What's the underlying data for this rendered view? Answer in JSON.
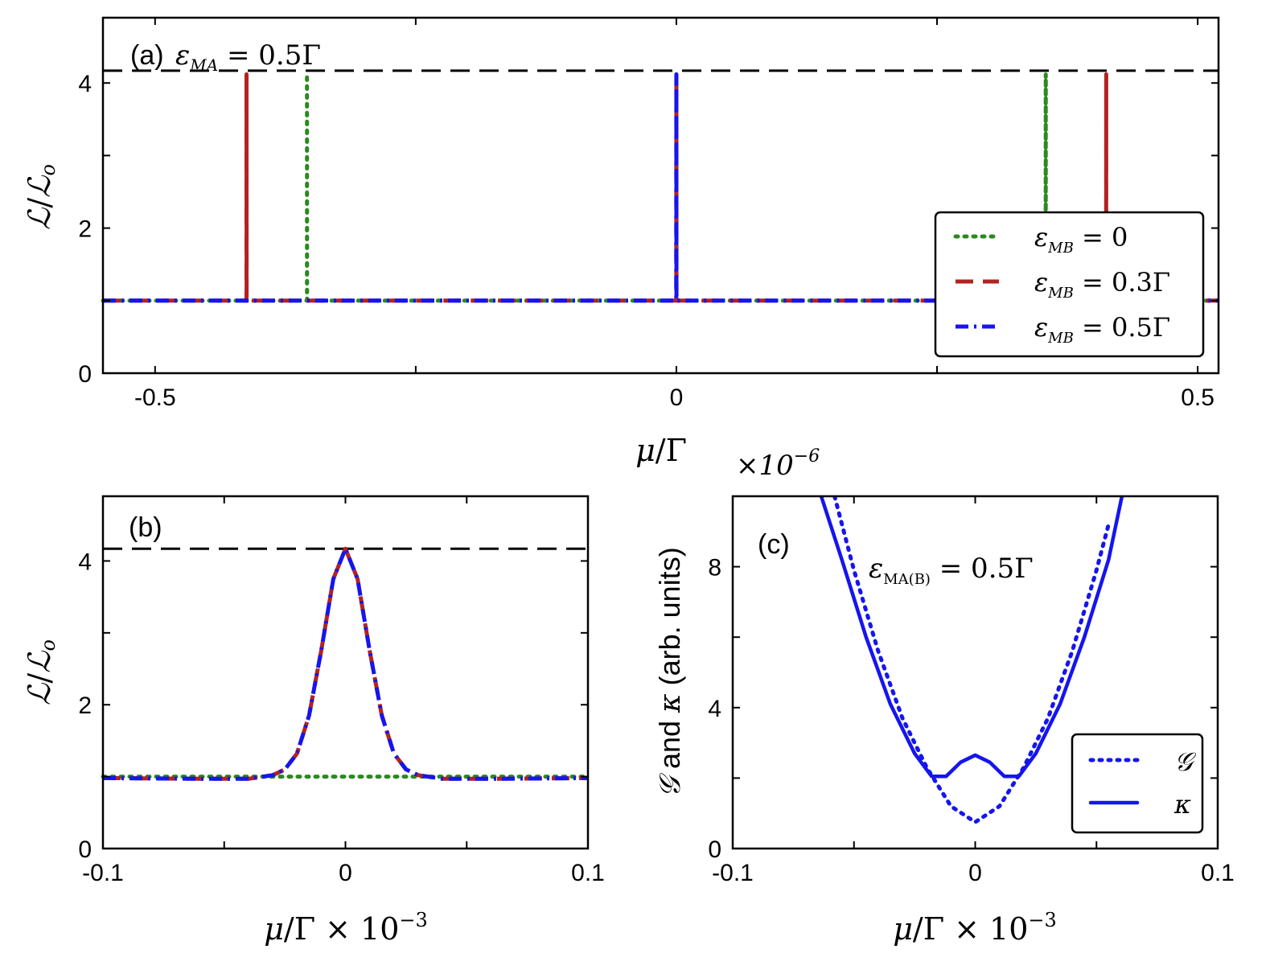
{
  "colors": {
    "green": "#2a8a1f",
    "red": "#b22222",
    "blue": "#1515ee",
    "reference": "#000000"
  },
  "chart_data": [
    {
      "id": "a",
      "type": "line",
      "panel_label": "(a)",
      "annotation": "ε_MA = 0.5Γ",
      "xlabel": "μ/Γ",
      "ylabel": "ℒ/ℒo",
      "xlim": [
        -0.55,
        0.52
      ],
      "ylim": [
        0,
        4.9
      ],
      "xticks": [
        -0.5,
        -0.25,
        0,
        0.25,
        0.5
      ],
      "xtick_labels": [
        "-0.5",
        "",
        "0",
        "",
        "0.5"
      ],
      "yticks": [
        0,
        1,
        2,
        3,
        4
      ],
      "ytick_labels": [
        "0",
        "",
        "2",
        "",
        "4"
      ],
      "reference_line": 4.17,
      "legend": {
        "position": "lower-right",
        "entries": [
          {
            "label": "ε_MB = 0",
            "style": "dotted",
            "color": "green"
          },
          {
            "label": "ε_MB = 0.3Γ",
            "style": "dashed",
            "color": "red"
          },
          {
            "label": "ε_MB = 0.5Γ",
            "style": "dashdot",
            "color": "blue"
          }
        ]
      },
      "series": [
        {
          "name": "ε_MB = 0",
          "style": "dotted",
          "color": "green",
          "x": [
            -0.55,
            -0.3543,
            -0.3543,
            -0.3542,
            0.3542,
            0.3543,
            0.3543,
            0.52
          ],
          "y": [
            1.0,
            1.0,
            4.12,
            1.0,
            1.0,
            4.12,
            1.0,
            1.0
          ]
        },
        {
          "name": "ε_MB = 0.3Γ",
          "style": "dashed",
          "color": "red",
          "x": [
            -0.55,
            -0.4123,
            -0.4123,
            -0.4122,
            -0.0001,
            0.0,
            0.0001,
            0.4122,
            0.4123,
            0.4123,
            0.52
          ],
          "y": [
            1.0,
            1.0,
            4.12,
            1.0,
            1.0,
            4.12,
            1.0,
            1.0,
            4.12,
            1.0,
            1.0
          ]
        },
        {
          "name": "ε_MB = 0.5Γ",
          "style": "dashdot",
          "color": "blue",
          "x": [
            -0.55,
            -0.0001,
            0.0,
            0.0001,
            0.52
          ],
          "y": [
            1.0,
            1.0,
            4.12,
            1.0,
            1.0
          ]
        }
      ]
    },
    {
      "id": "b",
      "type": "line",
      "panel_label": "(b)",
      "xlabel": "μ/Γ × 10⁻³",
      "ylabel": "ℒ/ℒo",
      "xlim": [
        -0.1,
        0.1
      ],
      "ylim": [
        0,
        4.9
      ],
      "xticks": [
        -0.1,
        -0.05,
        0,
        0.05,
        0.1
      ],
      "xtick_labels": [
        "-0.1",
        "",
        "0",
        "",
        "0.1"
      ],
      "yticks": [
        0,
        1,
        2,
        3,
        4
      ],
      "ytick_labels": [
        "0",
        "",
        "2",
        "",
        "4"
      ],
      "reference_line": 4.17,
      "series": [
        {
          "name": "ε_MB = 0",
          "style": "dotted",
          "color": "green",
          "x": [
            -0.1,
            -0.05,
            0,
            0.05,
            0.1
          ],
          "y": [
            1.0,
            1.0,
            1.0,
            1.0,
            1.0
          ]
        },
        {
          "name": "ε_MB = 0.3Γ",
          "style": "dashed",
          "color": "red",
          "x": [
            -0.1,
            -0.06,
            -0.04,
            -0.03,
            -0.025,
            -0.02,
            -0.015,
            -0.01,
            -0.005,
            0,
            0.005,
            0.01,
            0.015,
            0.02,
            0.025,
            0.03,
            0.04,
            0.06,
            0.1
          ],
          "y": [
            0.98,
            0.97,
            0.97,
            1.02,
            1.1,
            1.32,
            1.85,
            2.75,
            3.75,
            4.17,
            3.75,
            2.75,
            1.85,
            1.32,
            1.1,
            1.02,
            0.97,
            0.97,
            0.98
          ]
        },
        {
          "name": "ε_MB = 0.5Γ",
          "style": "dashdot",
          "color": "blue",
          "x": [
            -0.1,
            -0.06,
            -0.04,
            -0.03,
            -0.025,
            -0.02,
            -0.015,
            -0.01,
            -0.005,
            0,
            0.005,
            0.01,
            0.015,
            0.02,
            0.025,
            0.03,
            0.04,
            0.06,
            0.1
          ],
          "y": [
            0.98,
            0.97,
            0.97,
            1.02,
            1.1,
            1.32,
            1.85,
            2.75,
            3.75,
            4.17,
            3.75,
            2.75,
            1.85,
            1.32,
            1.1,
            1.02,
            0.97,
            0.97,
            0.98
          ]
        }
      ]
    },
    {
      "id": "c",
      "type": "line",
      "panel_label": "(c)",
      "annotation": "ε_MA(B) = 0.5Γ",
      "xlabel": "μ/Γ × 10⁻³",
      "ylabel": "𝒢 and κ (arb. units)",
      "y_multiplier": "×10⁻⁶",
      "xlim": [
        -0.1,
        0.1
      ],
      "ylim": [
        0,
        10
      ],
      "xticks": [
        -0.1,
        -0.05,
        0,
        0.05,
        0.1
      ],
      "xtick_labels": [
        "-0.1",
        "",
        "0",
        "",
        "0.1"
      ],
      "yticks": [
        0,
        2,
        4,
        6,
        8
      ],
      "ytick_labels": [
        "0",
        "",
        "4",
        "",
        "8"
      ],
      "legend": {
        "position": "lower-right",
        "entries": [
          {
            "label": "𝒢",
            "style": "dotted",
            "color": "blue"
          },
          {
            "label": "κ",
            "style": "solid",
            "color": "blue"
          }
        ]
      },
      "series": [
        {
          "name": "𝒢",
          "style": "dotted",
          "color": "blue",
          "x": [
            -0.058,
            -0.05,
            -0.04,
            -0.03,
            -0.02,
            -0.01,
            0,
            0.01,
            0.02,
            0.03,
            0.04,
            0.05,
            0.055
          ],
          "y": [
            10.0,
            7.9,
            5.6,
            3.7,
            2.3,
            1.2,
            0.75,
            1.2,
            2.3,
            3.7,
            5.6,
            7.9,
            9.2
          ]
        },
        {
          "name": "κ",
          "style": "solid",
          "color": "blue",
          "x": [
            -0.0635,
            -0.055,
            -0.045,
            -0.035,
            -0.025,
            -0.018,
            -0.012,
            -0.006,
            0,
            0.006,
            0.012,
            0.018,
            0.025,
            0.035,
            0.045,
            0.055,
            0.0605
          ],
          "y": [
            10.0,
            8.2,
            6.0,
            4.1,
            2.7,
            2.05,
            2.05,
            2.45,
            2.65,
            2.45,
            2.05,
            2.05,
            2.7,
            4.1,
            6.0,
            8.2,
            10.0
          ]
        }
      ]
    }
  ]
}
